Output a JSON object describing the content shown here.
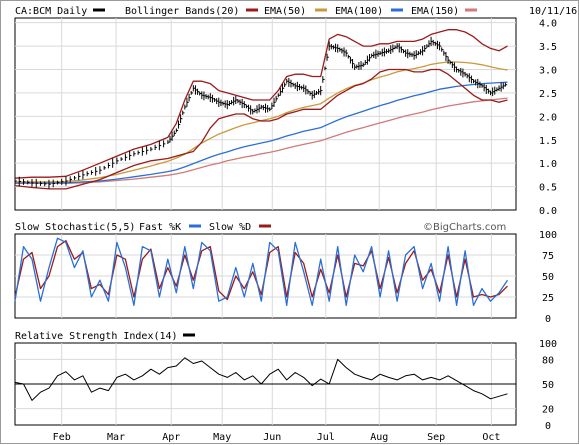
{
  "chart_data": [
    {
      "type": "line",
      "panel": "price",
      "title": "CA:BCM Daily",
      "date": "10/11/16",
      "legend": [
        {
          "label": "Bollinger Bands(20)",
          "color": "#9b1b1b"
        },
        {
          "label": "EMA(50)",
          "color": "#c89a3a"
        },
        {
          "label": "EMA(100)",
          "color": "#2b6fd6"
        },
        {
          "label": "EMA(150)",
          "color": "#d07a7a"
        }
      ],
      "months": [
        "Feb",
        "Mar",
        "Apr",
        "May",
        "Jun",
        "Jul",
        "Aug",
        "Sep",
        "Oct"
      ],
      "month_x": [
        5.5,
        11.9,
        18.4,
        24.4,
        30.3,
        36.6,
        42.9,
        49.6,
        56.1
      ],
      "x_range": [
        0,
        59
      ],
      "ylim": [
        0,
        4.1
      ],
      "yticks": [
        "4.0",
        "3.5",
        "3.0",
        "2.5",
        "2.0",
        "1.5",
        "1.0",
        "0.5",
        "0.0"
      ],
      "price_x": [
        0,
        2,
        4,
        6,
        8,
        10,
        12,
        14,
        16,
        18,
        19,
        20,
        21,
        22,
        23,
        24,
        25,
        26,
        27,
        28,
        29,
        30,
        31,
        32,
        33,
        34,
        35,
        36,
        37,
        38,
        39,
        40,
        41,
        42,
        43,
        44,
        45,
        46,
        47,
        48,
        49,
        50,
        51,
        52,
        53,
        54,
        55,
        56,
        57,
        58
      ],
      "price": [
        0.62,
        0.58,
        0.55,
        0.62,
        0.75,
        0.85,
        1.05,
        1.2,
        1.3,
        1.45,
        1.7,
        2.2,
        2.6,
        2.45,
        2.4,
        2.3,
        2.25,
        2.35,
        2.25,
        2.1,
        2.2,
        2.15,
        2.45,
        2.75,
        2.65,
        2.6,
        2.45,
        2.55,
        3.5,
        3.45,
        3.35,
        3.05,
        3.1,
        3.3,
        3.35,
        3.4,
        3.5,
        3.35,
        3.3,
        3.4,
        3.6,
        3.5,
        3.2,
        3.0,
        2.9,
        2.75,
        2.65,
        2.5,
        2.6,
        2.7
      ],
      "series": [
        {
          "name": "Bollinger Bands(20) upper",
          "values": [
            0.68,
            0.7,
            0.7,
            0.72,
            0.85,
            1.0,
            1.15,
            1.3,
            1.4,
            1.55,
            1.85,
            2.35,
            2.75,
            2.75,
            2.7,
            2.55,
            2.5,
            2.45,
            2.4,
            2.35,
            2.35,
            2.35,
            2.55,
            2.85,
            2.9,
            2.9,
            2.85,
            2.85,
            3.65,
            3.75,
            3.7,
            3.6,
            3.5,
            3.5,
            3.55,
            3.55,
            3.6,
            3.6,
            3.6,
            3.65,
            3.75,
            3.8,
            3.85,
            3.85,
            3.8,
            3.7,
            3.55,
            3.45,
            3.4,
            3.5
          ]
        },
        {
          "name": "Bollinger Bands(20) lower",
          "values": [
            0.52,
            0.48,
            0.45,
            0.45,
            0.55,
            0.65,
            0.8,
            0.95,
            1.05,
            1.1,
            1.15,
            1.2,
            1.25,
            1.45,
            1.75,
            1.95,
            2.0,
            2.05,
            2.05,
            1.95,
            1.9,
            1.9,
            1.95,
            2.05,
            2.1,
            2.15,
            2.15,
            2.15,
            2.3,
            2.45,
            2.55,
            2.65,
            2.7,
            2.8,
            2.95,
            3.0,
            3.0,
            3.0,
            2.95,
            2.95,
            3.0,
            3.0,
            2.9,
            2.75,
            2.6,
            2.45,
            2.35,
            2.35,
            2.3,
            2.35
          ]
        },
        {
          "name": "EMA(50)",
          "values": [
            0.6,
            0.6,
            0.6,
            0.61,
            0.64,
            0.69,
            0.76,
            0.85,
            0.94,
            1.04,
            1.11,
            1.19,
            1.31,
            1.43,
            1.53,
            1.62,
            1.69,
            1.76,
            1.82,
            1.86,
            1.91,
            1.95,
            2.0,
            2.08,
            2.14,
            2.19,
            2.23,
            2.27,
            2.39,
            2.5,
            2.59,
            2.66,
            2.71,
            2.78,
            2.84,
            2.89,
            2.95,
            2.99,
            3.02,
            3.06,
            3.11,
            3.14,
            3.16,
            3.16,
            3.15,
            3.13,
            3.1,
            3.06,
            3.02,
            2.99
          ]
        },
        {
          "name": "EMA(100)",
          "values": [
            0.58,
            0.58,
            0.58,
            0.58,
            0.6,
            0.62,
            0.66,
            0.71,
            0.76,
            0.82,
            0.86,
            0.92,
            0.99,
            1.06,
            1.13,
            1.19,
            1.24,
            1.3,
            1.35,
            1.39,
            1.43,
            1.47,
            1.52,
            1.58,
            1.63,
            1.68,
            1.72,
            1.76,
            1.84,
            1.92,
            1.99,
            2.05,
            2.11,
            2.17,
            2.23,
            2.28,
            2.34,
            2.39,
            2.44,
            2.48,
            2.53,
            2.58,
            2.61,
            2.64,
            2.66,
            2.68,
            2.7,
            2.71,
            2.72,
            2.73
          ]
        },
        {
          "name": "EMA(150)",
          "values": [
            0.57,
            0.57,
            0.57,
            0.57,
            0.58,
            0.6,
            0.63,
            0.66,
            0.7,
            0.74,
            0.77,
            0.81,
            0.86,
            0.91,
            0.96,
            1.0,
            1.05,
            1.09,
            1.13,
            1.16,
            1.2,
            1.23,
            1.27,
            1.32,
            1.36,
            1.4,
            1.44,
            1.48,
            1.54,
            1.6,
            1.66,
            1.71,
            1.76,
            1.81,
            1.86,
            1.91,
            1.96,
            2.01,
            2.05,
            2.09,
            2.14,
            2.18,
            2.22,
            2.25,
            2.28,
            2.31,
            2.33,
            2.35,
            2.37,
            2.39
          ]
        }
      ]
    },
    {
      "type": "line",
      "panel": "stochastic",
      "title": "Slow Stochastic(5,5)",
      "legend": [
        {
          "label": "Fast %K",
          "color": "#2b6fd6"
        },
        {
          "label": "Slow %D",
          "color": "#9b1b1b"
        }
      ],
      "brand": "©BigCharts.com",
      "ylim": [
        0,
        100
      ],
      "yticks": [
        "100",
        "75",
        "50",
        "25",
        "0"
      ],
      "x_range": [
        0,
        59
      ],
      "x": [
        0,
        1,
        2,
        3,
        4,
        5,
        6,
        7,
        8,
        9,
        10,
        11,
        12,
        13,
        14,
        15,
        16,
        17,
        18,
        19,
        20,
        21,
        22,
        23,
        24,
        25,
        26,
        27,
        28,
        29,
        30,
        31,
        32,
        33,
        34,
        35,
        36,
        37,
        38,
        39,
        40,
        41,
        42,
        43,
        44,
        45,
        46,
        47,
        48,
        49,
        50,
        51,
        52,
        53,
        54,
        55,
        56,
        57,
        58
      ],
      "series": [
        {
          "name": "Fast %K",
          "values": [
            20,
            85,
            70,
            20,
            60,
            95,
            90,
            60,
            80,
            25,
            45,
            20,
            90,
            60,
            15,
            85,
            80,
            25,
            70,
            30,
            85,
            35,
            90,
            80,
            20,
            25,
            60,
            25,
            65,
            20,
            90,
            80,
            15,
            90,
            55,
            15,
            70,
            20,
            85,
            15,
            75,
            55,
            85,
            25,
            80,
            20,
            75,
            85,
            35,
            65,
            20,
            85,
            15,
            80,
            15,
            35,
            20,
            30,
            45
          ]
        },
        {
          "name": "Slow %D",
          "values": [
            25,
            70,
            78,
            35,
            50,
            85,
            92,
            70,
            78,
            35,
            40,
            28,
            75,
            70,
            25,
            70,
            82,
            35,
            60,
            38,
            75,
            45,
            80,
            85,
            32,
            22,
            50,
            35,
            55,
            28,
            78,
            85,
            25,
            78,
            65,
            25,
            58,
            30,
            75,
            25,
            65,
            62,
            80,
            35,
            72,
            30,
            65,
            80,
            45,
            58,
            30,
            75,
            25,
            70,
            25,
            28,
            25,
            28,
            38
          ]
        }
      ]
    },
    {
      "type": "line",
      "panel": "rsi",
      "title": "Relative Strength Index(14)",
      "legend": [
        {
          "label": "",
          "color": "#000000"
        }
      ],
      "ylim": [
        0,
        100
      ],
      "yticks": [
        "100",
        "80",
        "50",
        "20",
        "0"
      ],
      "reference_line": 50,
      "x_range": [
        0,
        59
      ],
      "x": [
        0,
        1,
        2,
        3,
        4,
        5,
        6,
        7,
        8,
        9,
        10,
        11,
        12,
        13,
        14,
        15,
        16,
        17,
        18,
        19,
        20,
        21,
        22,
        23,
        24,
        25,
        26,
        27,
        28,
        29,
        30,
        31,
        32,
        33,
        34,
        35,
        36,
        37,
        38,
        39,
        40,
        41,
        42,
        43,
        44,
        45,
        46,
        47,
        48,
        49,
        50,
        51,
        52,
        53,
        54,
        55,
        56,
        57,
        58
      ],
      "series": [
        {
          "name": "RSI(14)",
          "values": [
            52,
            50,
            30,
            40,
            45,
            60,
            65,
            55,
            60,
            40,
            45,
            42,
            58,
            62,
            55,
            60,
            68,
            62,
            70,
            72,
            82,
            75,
            78,
            70,
            62,
            58,
            64,
            55,
            60,
            50,
            62,
            68,
            55,
            64,
            58,
            48,
            56,
            50,
            80,
            70,
            62,
            58,
            55,
            62,
            58,
            55,
            60,
            62,
            55,
            58,
            55,
            60,
            54,
            48,
            42,
            38,
            32,
            35,
            38
          ]
        }
      ]
    }
  ]
}
